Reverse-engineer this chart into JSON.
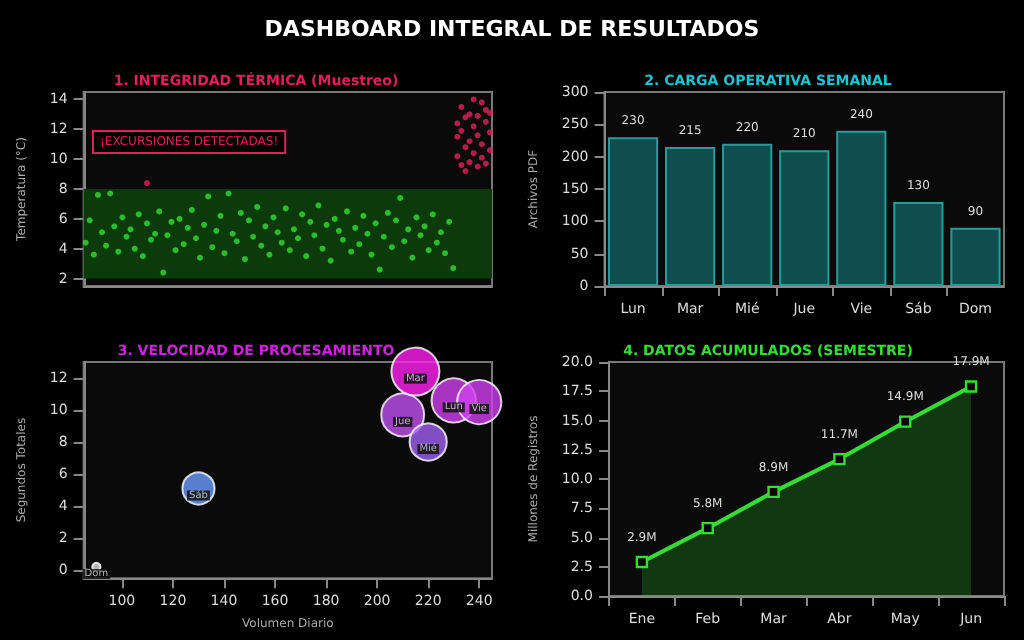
{
  "chart_data": [
    {
      "type": "other",
      "title": "DASHBOARD INTEGRAL DE RESULTADOS"
    },
    {
      "type": "scatter",
      "title": "1. INTEGRIDAD TÉRMICA (Muestreo)",
      "ylabel": "Temperatura (°C)",
      "categories": [
        null,
        null,
        null,
        null,
        null,
        null,
        null,
        null,
        null,
        null,
        null,
        null,
        null,
        null,
        null,
        null,
        null,
        null,
        null,
        null,
        null,
        null,
        null,
        null,
        null,
        null,
        null,
        null,
        null,
        null,
        null,
        null,
        null,
        null,
        null,
        null,
        null,
        null,
        null,
        null,
        null,
        null,
        null,
        null,
        null,
        null,
        null,
        null,
        null,
        null,
        null,
        null,
        null,
        null,
        null,
        null,
        null,
        null,
        null,
        null,
        null,
        null,
        null,
        null,
        null,
        null,
        null,
        null,
        null,
        null,
        null,
        null,
        null,
        null,
        null,
        null,
        null,
        null,
        null,
        null,
        null,
        null,
        null,
        null,
        null,
        null,
        null,
        null,
        null,
        null,
        null,
        null,
        null,
        null,
        null,
        null,
        null,
        null,
        null,
        null
      ],
      "ylim": [
        1.5,
        14.5
      ],
      "yticks": [
        2,
        4,
        6,
        8,
        10,
        12,
        14
      ],
      "marker": "circle",
      "annotations": [
        "¡EXCURSIONES DETECTADAS!"
      ],
      "bands": [
        {
          "axis": "y",
          "from": 2,
          "to": 8,
          "color": "#0b3a0b"
        }
      ],
      "series": [
        {
          "color": "#33dd33",
          "values": [
            4.4,
            5.9,
            3.6,
            7.6,
            5.1,
            4.2,
            7.7,
            5.5,
            3.8,
            6.1,
            4.8,
            5.3,
            4.0,
            6.3,
            3.5,
            5.7,
            4.6,
            5.0,
            6.5,
            2.4,
            4.9,
            5.8,
            3.9,
            6.0,
            4.3,
            5.4,
            6.6,
            4.7,
            3.4,
            5.6,
            7.5,
            4.1,
            5.2,
            6.2,
            3.7,
            7.7,
            5.0,
            4.5,
            6.4,
            3.3,
            5.9,
            4.8,
            6.8,
            4.2,
            5.5,
            3.6,
            6.1,
            5.1,
            4.4,
            6.7,
            3.9,
            5.3,
            4.7,
            6.3,
            3.5,
            5.8,
            4.9,
            6.9,
            4.0,
            5.6,
            3.2,
            6.0,
            5.2,
            4.6,
            6.5,
            3.8,
            5.4,
            4.3,
            6.2,
            5.0,
            3.6,
            5.7,
            2.6,
            4.8,
            6.4,
            4.1,
            5.9,
            7.4,
            4.5,
            5.3,
            3.4,
            6.1,
            4.9,
            5.5,
            3.9,
            6.3,
            4.4,
            5.1,
            3.7,
            5.8,
            2.7,
            null,
            null,
            null,
            null,
            null,
            null,
            null,
            null,
            null
          ]
        },
        {
          "color": "#e0205a",
          "values": [
            null,
            null,
            null,
            null,
            null,
            null,
            null,
            null,
            null,
            null,
            null,
            null,
            null,
            null,
            null,
            8.4,
            null,
            null,
            null,
            null,
            null,
            null,
            null,
            null,
            null,
            null,
            null,
            null,
            null,
            null,
            null,
            null,
            null,
            null,
            null,
            null,
            null,
            null,
            null,
            null,
            null,
            null,
            null,
            null,
            null,
            null,
            null,
            null,
            null,
            null,
            null,
            null,
            null,
            null,
            null,
            null,
            null,
            null,
            null,
            null,
            null,
            null,
            null,
            null,
            null,
            null,
            null,
            null,
            null,
            null,
            null,
            null,
            null,
            null,
            null,
            null,
            null,
            null,
            null,
            null,
            null,
            null,
            null,
            null,
            null,
            null,
            null,
            null,
            null,
            null,
            null,
            11.5,
            13.5,
            12.8,
            11.2,
            12.2,
            11.6,
            10.1,
            9.7,
            10.6
          ]
        },
        {
          "color": "#e0205a",
          "values": [
            null,
            null,
            null,
            null,
            null,
            null,
            null,
            null,
            null,
            null,
            null,
            null,
            null,
            null,
            null,
            null,
            null,
            null,
            null,
            null,
            null,
            null,
            null,
            null,
            null,
            null,
            null,
            null,
            null,
            null,
            null,
            null,
            null,
            null,
            null,
            null,
            null,
            null,
            null,
            null,
            null,
            null,
            null,
            null,
            null,
            null,
            null,
            null,
            null,
            null,
            null,
            null,
            null,
            null,
            null,
            null,
            null,
            null,
            null,
            null,
            null,
            null,
            null,
            null,
            null,
            null,
            null,
            null,
            null,
            null,
            null,
            null,
            null,
            null,
            null,
            null,
            null,
            null,
            null,
            null,
            null,
            null,
            null,
            null,
            null,
            null,
            null,
            null,
            null,
            null,
            null,
            10.2,
            9.6,
            9.2,
            13.0,
            10.4,
            9.5,
            13.8,
            12.5,
            13.1
          ]
        },
        {
          "color": "#e0205a",
          "values": [
            null,
            null,
            null,
            null,
            null,
            null,
            null,
            null,
            null,
            null,
            null,
            null,
            null,
            null,
            null,
            null,
            null,
            null,
            null,
            null,
            null,
            null,
            null,
            null,
            null,
            null,
            null,
            null,
            null,
            null,
            null,
            null,
            null,
            null,
            null,
            null,
            null,
            null,
            null,
            null,
            null,
            null,
            null,
            null,
            null,
            null,
            null,
            null,
            null,
            null,
            null,
            null,
            null,
            null,
            null,
            null,
            null,
            null,
            null,
            null,
            null,
            null,
            null,
            null,
            null,
            null,
            null,
            null,
            null,
            null,
            null,
            null,
            null,
            null,
            null,
            null,
            null,
            null,
            null,
            null,
            null,
            null,
            null,
            null,
            null,
            null,
            null,
            null,
            null,
            null,
            null,
            12.4,
            11.9,
            10.8,
            9.8,
            14.0,
            12.9,
            11.0,
            13.3,
            11.8
          ]
        }
      ]
    },
    {
      "type": "bar",
      "title": "2. CARGA OPERATIVA SEMANAL",
      "ylabel": "Archivos PDF",
      "categories": [
        "Lun",
        "Mar",
        "Mié",
        "Jue",
        "Vie",
        "Sáb",
        "Dom"
      ],
      "values": [
        230,
        215,
        220,
        210,
        240,
        130,
        90
      ],
      "color": "#0e4e4e",
      "ylim": [
        0,
        300
      ],
      "yticks": [
        0,
        50,
        100,
        150,
        200,
        250,
        300
      ],
      "data_labels": true
    },
    {
      "type": "bubble",
      "title": "3. VELOCIDAD DE PROCESAMIENTO",
      "xlabel": "Volumen Diario",
      "ylabel": "Segundos Totales",
      "x": [
        90,
        130,
        210,
        215,
        220,
        230,
        240
      ],
      "values": [
        0.2,
        5.1,
        9.7,
        12.4,
        8.0,
        10.6,
        10.5
      ],
      "sizes": [
        0.03,
        0.45,
        0.8,
        1,
        0.6,
        0.85,
        0.85
      ],
      "colors": [
        "#dddddd",
        "#6a9cff",
        "#c050f0",
        "#ff20f0",
        "#a060f0",
        "#d040f0",
        "#d040f0"
      ],
      "xlim": [
        85,
        245
      ],
      "xticks": [
        100,
        120,
        140,
        160,
        180,
        200,
        220,
        240
      ],
      "ylim": [
        -0.5,
        13
      ],
      "yticks": [
        0,
        2,
        4,
        6,
        8,
        10,
        12
      ],
      "annotations": [
        {
          "text": "Dom",
          "x": 90,
          "y": 0.2
        },
        {
          "text": "Sáb",
          "x": 130,
          "y": 5.1
        },
        {
          "text": "Jue",
          "x": 210,
          "y": 9.7
        },
        {
          "text": "Mar",
          "x": 215,
          "y": 12.4
        },
        {
          "text": "Mié",
          "x": 220,
          "y": 8.0
        },
        {
          "text": "Lun",
          "x": 230,
          "y": 10.6
        },
        {
          "text": "Vie",
          "x": 240,
          "y": 10.5
        }
      ]
    },
    {
      "type": "area",
      "title": "4. DATOS ACUMULADOS (SEMESTRE)",
      "ylabel": "Millones de Registros",
      "categories": [
        "Ene",
        "Feb",
        "Mar",
        "Abr",
        "May",
        "Jun"
      ],
      "values": [
        2.9,
        5.8,
        8.9,
        11.7,
        14.9,
        17.9
      ],
      "value_labels": [
        "2.9M",
        "5.8M",
        "8.9M",
        "11.7M",
        "14.9M",
        "17.9M"
      ],
      "color": "#33dd33",
      "marker": "square",
      "ylim": [
        0,
        20
      ],
      "yticks": [
        {
          "value": 0,
          "label": "0.0"
        },
        {
          "value": 2.5,
          "label": "2.5"
        },
        {
          "value": 5,
          "label": "5.0"
        },
        {
          "value": 7.5,
          "label": "7.5"
        },
        {
          "value": 10,
          "label": "10.0"
        },
        {
          "value": 12.5,
          "label": "12.5"
        },
        {
          "value": 15,
          "label": "15.0"
        },
        {
          "value": 17.5,
          "label": "17.5"
        },
        {
          "value": 20,
          "label": "20.0"
        }
      ]
    }
  ]
}
